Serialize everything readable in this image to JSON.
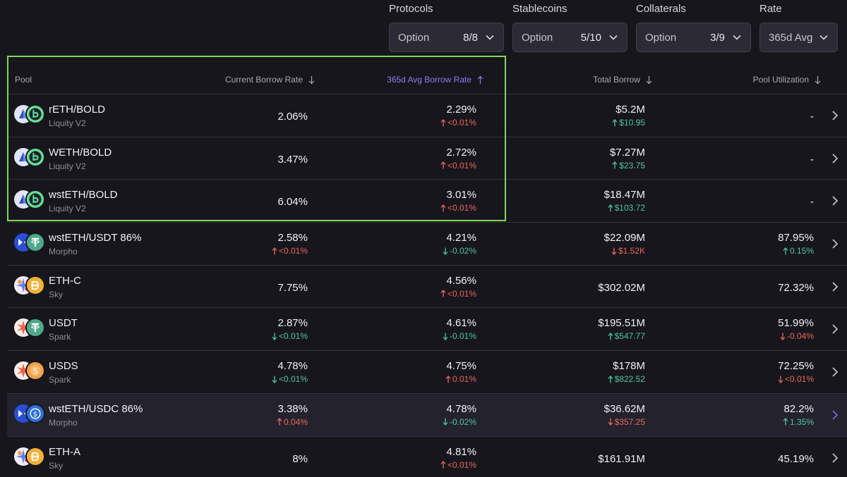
{
  "filters": [
    {
      "label": "Protocols",
      "option": "Option",
      "count": "8/8"
    },
    {
      "label": "Stablecoins",
      "option": "Option",
      "count": "5/10"
    },
    {
      "label": "Collaterals",
      "option": "Option",
      "count": "3/9"
    },
    {
      "label": "Rate",
      "option": "365d Avg",
      "count": ""
    }
  ],
  "columns": {
    "pool": "Pool",
    "current": "Current Borrow Rate",
    "avg": "365d Avg Borrow Rate",
    "total": "Total Borrow",
    "util": "Pool Utilization"
  },
  "colors": {
    "accent": "#8b7cf6",
    "highlight_box": "#7ed957",
    "positive": "#4fc6a0",
    "negative": "#e8665a"
  },
  "rows": [
    {
      "name": "rETH/BOLD",
      "protocol": "Liquity V2",
      "icons": [
        "liquity-icon",
        "bold-icon"
      ],
      "cur": "2.06%",
      "cur_d": "",
      "cur_dir": "",
      "avg": "2.29%",
      "avg_d": "<0.01%",
      "avg_dir": "up-red",
      "total": "$5.2M",
      "total_d": "$10.95",
      "total_dir": "up-green",
      "util": "-",
      "util_d": "",
      "util_dir": ""
    },
    {
      "name": "WETH/BOLD",
      "protocol": "Liquity V2",
      "icons": [
        "liquity-icon",
        "bold-icon"
      ],
      "cur": "3.47%",
      "cur_d": "",
      "cur_dir": "",
      "avg": "2.72%",
      "avg_d": "<0.01%",
      "avg_dir": "up-red",
      "total": "$7.27M",
      "total_d": "$23.75",
      "total_dir": "up-green",
      "util": "-",
      "util_d": "",
      "util_dir": ""
    },
    {
      "name": "wstETH/BOLD",
      "protocol": "Liquity V2",
      "icons": [
        "liquity-icon",
        "bold-icon"
      ],
      "cur": "6.04%",
      "cur_d": "",
      "cur_dir": "",
      "avg": "3.01%",
      "avg_d": "<0.01%",
      "avg_dir": "up-red",
      "total": "$18.47M",
      "total_d": "$103.72",
      "total_dir": "up-green",
      "util": "-",
      "util_d": "",
      "util_dir": ""
    },
    {
      "name": "wstETH/USDT 86%",
      "protocol": "Morpho",
      "icons": [
        "morpho-icon",
        "usdt-icon"
      ],
      "cur": "2.58%",
      "cur_d": "<0.01%",
      "cur_dir": "up-red",
      "avg": "4.21%",
      "avg_d": "-0.02%",
      "avg_dir": "down-green",
      "total": "$22.09M",
      "total_d": "$1.52K",
      "total_dir": "down-red",
      "util": "87.95%",
      "util_d": "0.15%",
      "util_dir": "up-green"
    },
    {
      "name": "ETH-C",
      "protocol": "Sky",
      "icons": [
        "sky-icon",
        "dai-icon"
      ],
      "cur": "7.75%",
      "cur_d": "",
      "cur_dir": "",
      "avg": "4.56%",
      "avg_d": "<0.01%",
      "avg_dir": "up-red",
      "total": "$302.02M",
      "total_d": "",
      "total_dir": "",
      "util": "72.32%",
      "util_d": "",
      "util_dir": ""
    },
    {
      "name": "USDT",
      "protocol": "Spark",
      "icons": [
        "spark-icon",
        "usdt-icon"
      ],
      "cur": "2.87%",
      "cur_d": "<0.01%",
      "cur_dir": "down-green",
      "avg": "4.61%",
      "avg_d": "-0.01%",
      "avg_dir": "down-green",
      "total": "$195.51M",
      "total_d": "$547.77",
      "total_dir": "up-green",
      "util": "51.99%",
      "util_d": "-0.04%",
      "util_dir": "down-red"
    },
    {
      "name": "USDS",
      "protocol": "Spark",
      "icons": [
        "spark-icon",
        "usds-icon"
      ],
      "cur": "4.78%",
      "cur_d": "<0.01%",
      "cur_dir": "down-green",
      "avg": "4.75%",
      "avg_d": "0.01%",
      "avg_dir": "up-red",
      "total": "$178M",
      "total_d": "$822.52",
      "total_dir": "up-green",
      "util": "72.25%",
      "util_d": "<0.01%",
      "util_dir": "down-red"
    },
    {
      "name": "wstETH/USDC 86%",
      "protocol": "Morpho",
      "icons": [
        "morpho-icon",
        "usdc-icon"
      ],
      "cur": "3.38%",
      "cur_d": "0.04%",
      "cur_dir": "up-red",
      "avg": "4.78%",
      "avg_d": "-0.02%",
      "avg_dir": "down-green",
      "total": "$36.62M",
      "total_d": "$357.25",
      "total_dir": "down-red",
      "util": "82.2%",
      "util_d": "1.35%",
      "util_dir": "up-green"
    },
    {
      "name": "ETH-A",
      "protocol": "Sky",
      "icons": [
        "sky-icon",
        "dai-icon"
      ],
      "cur": "8%",
      "cur_d": "",
      "cur_dir": "",
      "avg": "4.81%",
      "avg_d": "<0.01%",
      "avg_dir": "up-red",
      "total": "$161.91M",
      "total_d": "",
      "total_dir": "",
      "util": "45.19%",
      "util_d": "",
      "util_dir": ""
    }
  ]
}
